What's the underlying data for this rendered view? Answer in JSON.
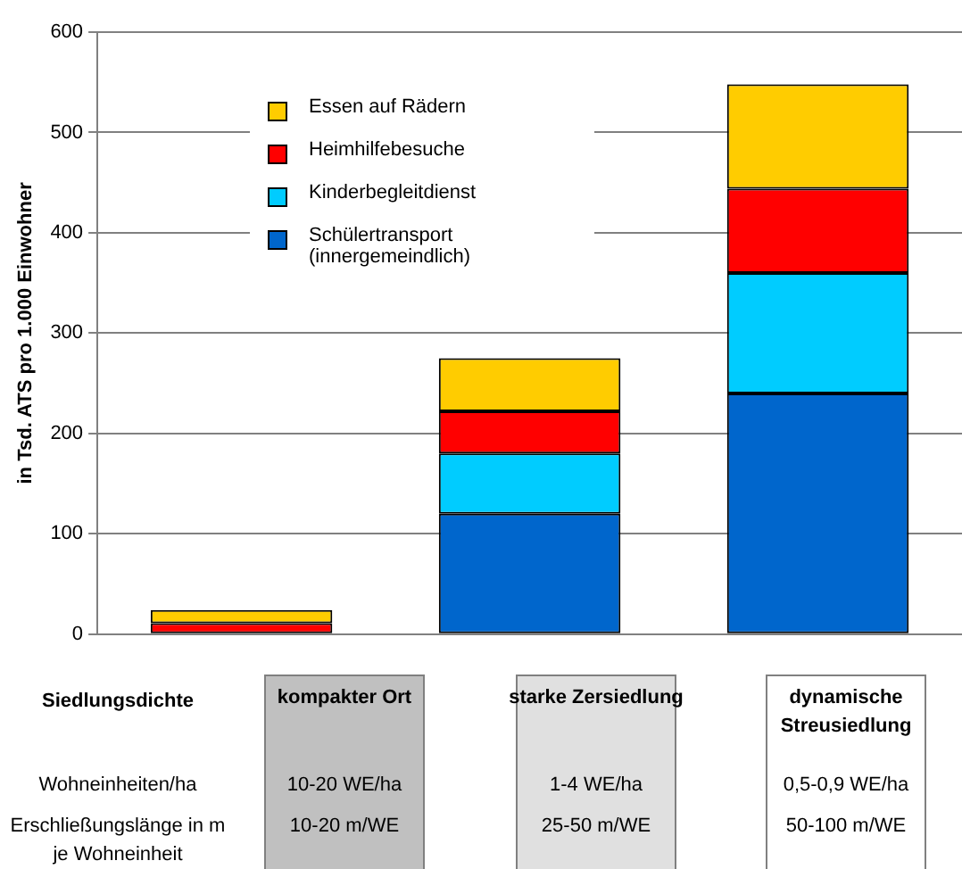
{
  "chart_data": {
    "type": "bar",
    "stacked": true,
    "categories": [
      "kompakter Ort",
      "starke Zersiedlung",
      "dynamische Streusiedlung"
    ],
    "xlabel": "Siedlungsdichte",
    "ylabel": "in Tsd. ATS pro 1.000 Einwohner",
    "series": [
      {
        "name": "Schülertransport (innergemeindlich)",
        "color": "#0066cc",
        "values": [
          0,
          120,
          240
        ]
      },
      {
        "name": "Kinderbegleitdienst",
        "color": "#00ccff",
        "values": [
          0,
          60,
          120
        ]
      },
      {
        "name": "Heimhilfebesuche",
        "color": "#ff0000",
        "values": [
          11,
          42,
          84
        ]
      },
      {
        "name": "Essen auf Rädern",
        "color": "#ffcc00",
        "values": [
          13,
          53,
          104
        ]
      }
    ],
    "ylim": [
      0,
      600
    ],
    "yticks": [
      0,
      100,
      200,
      300,
      400,
      500,
      600
    ],
    "grid": "y",
    "legend": "top left",
    "tick_labels": "y",
    "annotations": [
      "Wohneinheiten/ha",
      "10-20 WE/ha",
      "1-4 WE/ha",
      "0,5-0,9 WE/ha",
      "Erschließungslänge in m je Wohneinheit",
      "10-20 m/WE",
      "25-50 m/WE",
      "50-100 m/WE"
    ]
  }
}
